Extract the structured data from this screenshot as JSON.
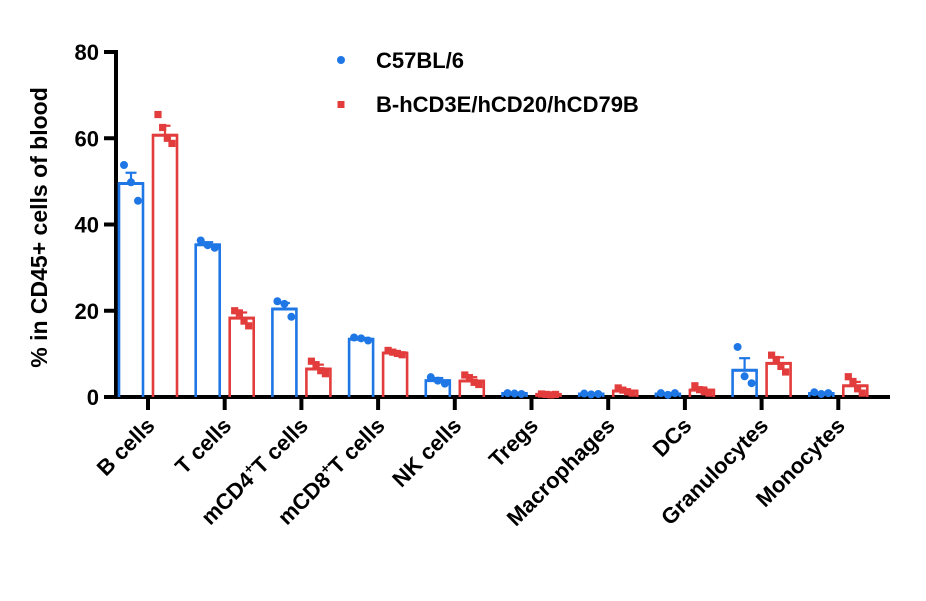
{
  "chart_data": {
    "type": "bar",
    "title": "",
    "xlabel": "",
    "ylabel": "% in CD45+ cells of blood",
    "ylim": [
      0,
      80
    ],
    "yticks": [
      "0",
      "20",
      "40",
      "60",
      "80"
    ],
    "categories": [
      {
        "label": "B cells",
        "sup": ""
      },
      {
        "label": "T cells",
        "sup": ""
      },
      {
        "label": "mCD4",
        "sup": "+",
        "suffix": "T cells"
      },
      {
        "label": "mCD8",
        "sup": "+",
        "suffix": "T cells"
      },
      {
        "label": "NK cells",
        "sup": ""
      },
      {
        "label": "Tregs",
        "sup": ""
      },
      {
        "label": "Macrophages",
        "sup": ""
      },
      {
        "label": "DCs",
        "sup": ""
      },
      {
        "label": "Granulocytes",
        "sup": ""
      },
      {
        "label": "Monocytes",
        "sup": ""
      }
    ],
    "legend_position": "top-center",
    "series": [
      {
        "name": "C57BL/6",
        "color": "#1f77e6",
        "marker": "circle",
        "values": [
          49.5,
          35.3,
          20.4,
          13.4,
          3.8,
          0.8,
          0.7,
          0.7,
          6.2,
          0.8
        ],
        "errors": [
          2.5,
          0.6,
          1.4,
          0.3,
          0.6,
          0.1,
          0.1,
          0.2,
          2.8,
          0.2
        ],
        "points": [
          [
            53.8,
            49.8,
            45.5
          ],
          [
            36.3,
            35.2,
            34.6
          ],
          [
            22.2,
            21.6,
            18.6
          ],
          [
            13.8,
            13.6,
            13.1
          ],
          [
            4.6,
            3.8,
            3.1
          ],
          [
            0.9,
            0.8,
            0.7
          ],
          [
            0.8,
            0.6,
            0.7
          ],
          [
            0.9,
            0.5,
            0.9
          ],
          [
            11.6,
            4.8,
            3.2
          ],
          [
            1.1,
            0.7,
            0.9
          ]
        ]
      },
      {
        "name": "B-hCD3E/hCD20/hCD79B",
        "color": "#e23c3c",
        "marker": "square",
        "values": [
          60.7,
          18.3,
          6.5,
          10.2,
          3.7,
          0.6,
          1.4,
          1.6,
          7.8,
          2.6
        ],
        "errors": [
          2.2,
          1.3,
          1.0,
          0.4,
          0.9,
          0.1,
          0.4,
          0.6,
          1.4,
          0.9
        ],
        "points": [
          [
            65.5,
            62.5,
            60.0,
            58.8
          ],
          [
            20.0,
            19.5,
            17.6,
            16.5
          ],
          [
            8.3,
            7.5,
            6.1,
            5.4
          ],
          [
            10.8,
            10.4,
            10.1,
            9.8
          ],
          [
            5.1,
            4.5,
            3.4,
            2.9
          ],
          [
            0.7,
            0.6,
            0.5,
            0.6
          ],
          [
            2.1,
            1.6,
            1.2,
            0.9
          ],
          [
            2.6,
            1.7,
            1.2,
            0.9
          ],
          [
            9.7,
            8.7,
            7.1,
            5.8
          ],
          [
            4.7,
            3.6,
            1.9,
            0.9
          ]
        ]
      }
    ]
  }
}
